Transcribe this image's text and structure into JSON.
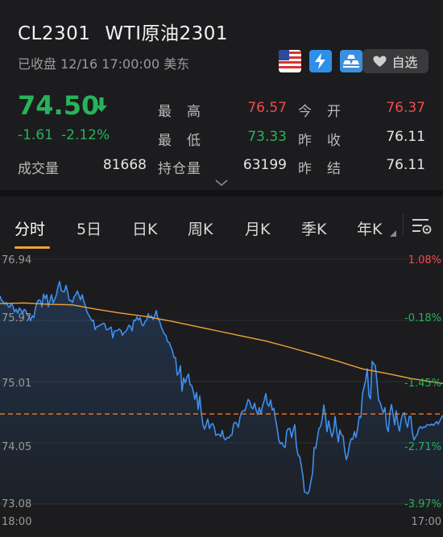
{
  "header": {
    "symbol": "CL2301",
    "name": "WTI原油2301",
    "status": "已收盘 12/16 17:00:00 美东",
    "fav_label": "自选",
    "price": "74.50",
    "change": "-1.61",
    "change_pct": "-2.12%",
    "volume_label": "成交量",
    "volume_value": "81668",
    "stats": {
      "high_label": "最　高",
      "high_value": "76.57",
      "open_label": "今　开",
      "open_value": "76.37",
      "low_label": "最　低",
      "low_value": "73.33",
      "prev_close_label": "昨　收",
      "prev_close_value": "76.11",
      "oi_label": "持仓量",
      "oi_value": "63199",
      "prev_settle_label": "昨　结",
      "prev_settle_value": "76.11"
    },
    "colors": {
      "up": "#f04b4b",
      "down": "#27b35a",
      "accent": "#f0a23a"
    },
    "icons": [
      "us-flag-icon",
      "lightning-icon",
      "gold-bars-icon",
      "heart-icon",
      "chevron-down-icon",
      "settings-icon"
    ]
  },
  "tabs": [
    {
      "label": "分时",
      "active": true
    },
    {
      "label": "5日"
    },
    {
      "label": "日K"
    },
    {
      "label": "周K"
    },
    {
      "label": "月K"
    },
    {
      "label": "季K"
    },
    {
      "label": "年K"
    }
  ],
  "chart_data": {
    "type": "line",
    "y_ticks": [
      "76.94",
      "75.97",
      "75.01",
      "74.05",
      "73.08"
    ],
    "pct_ticks": [
      "1.08%",
      "-0.18%",
      "-1.45%",
      "-2.71%",
      "-3.97%"
    ],
    "x_ticks": [
      "18:00",
      "17:00"
    ],
    "ylim": [
      73.08,
      76.94
    ],
    "reference_line": 74.5,
    "series": [
      {
        "color": "#3d8ff0",
        "x": [
          0,
          1,
          2,
          3,
          4,
          5,
          6,
          7,
          8,
          9,
          10,
          11,
          12,
          13,
          14,
          15,
          16,
          17,
          18,
          19,
          20,
          21,
          22,
          23,
          24,
          25,
          26,
          27,
          28,
          29,
          30,
          31,
          32,
          33,
          34,
          35,
          36,
          37,
          38,
          39,
          40,
          41,
          42,
          43,
          44,
          45,
          46,
          47,
          48,
          49,
          50,
          51,
          52,
          53,
          54,
          55,
          56,
          57,
          58,
          59,
          60,
          61,
          62,
          63,
          64,
          65,
          66,
          67,
          68,
          69,
          70,
          71,
          72,
          73,
          74,
          75,
          76,
          77,
          78,
          79,
          80,
          81,
          82,
          83,
          84,
          85,
          86,
          87,
          88,
          89,
          90,
          91,
          92,
          93,
          94,
          95,
          96,
          97,
          98,
          99,
          100,
          101,
          102,
          103,
          104,
          105,
          106,
          107,
          108,
          109,
          110,
          111,
          112,
          113,
          114,
          115,
          116,
          117,
          118,
          119,
          120,
          121,
          122,
          123,
          124,
          125,
          126,
          127,
          128,
          129,
          130,
          131,
          132,
          133,
          134,
          135,
          136,
          137,
          138,
          139,
          140,
          141,
          142,
          143,
          144,
          145,
          146,
          147,
          148,
          149,
          150,
          151,
          152,
          153,
          154,
          155,
          156,
          157,
          158,
          159,
          160,
          161,
          162,
          163,
          164,
          165,
          166,
          167,
          168,
          169,
          170,
          171,
          172,
          173,
          174,
          175,
          176,
          177,
          178,
          179,
          180,
          181,
          182,
          183,
          184,
          185,
          186,
          187,
          188,
          189,
          190,
          191,
          192,
          193,
          194,
          195,
          196,
          197,
          198,
          199,
          200,
          201,
          202,
          203,
          204,
          205,
          206,
          207,
          208,
          209,
          210,
          211,
          212,
          213,
          214,
          215,
          216,
          217,
          218,
          219,
          220,
          221,
          222,
          223,
          224,
          225,
          226,
          227,
          228,
          229,
          230,
          231,
          232,
          233,
          234,
          235,
          236,
          237,
          238,
          239,
          240,
          241,
          242,
          243,
          244,
          245,
          246,
          247,
          248,
          249,
          250,
          251,
          252,
          253,
          254,
          255,
          256,
          257,
          258,
          259,
          260,
          261,
          262,
          263,
          264,
          265,
          266,
          267,
          268,
          269,
          270,
          271,
          272,
          273,
          274,
          275
        ],
        "values": [
          76.36,
          76.29,
          76.27,
          76.23,
          76.26,
          76.2,
          76.18,
          76.24,
          76.2,
          76.11,
          76.15,
          76.09,
          76.17,
          76.14,
          76.08,
          76.15,
          76.13,
          76.06,
          76.05,
          75.97,
          76.05,
          76.02,
          76.17,
          76.26,
          76.3,
          76.29,
          76.19,
          76.39,
          76.32,
          76.38,
          76.19,
          76.29,
          76.38,
          76.25,
          76.31,
          76.38,
          76.51,
          76.59,
          76.45,
          76.43,
          76.43,
          76.53,
          76.42,
          76.29,
          76.29,
          76.26,
          76.35,
          76.38,
          76.44,
          76.37,
          76.3,
          76.38,
          76.28,
          76.2,
          76.11,
          76.06,
          76.02,
          75.97,
          75.98,
          75.83,
          75.88,
          75.88,
          75.9,
          75.91,
          75.93,
          75.92,
          75.83,
          75.83,
          75.85,
          75.87,
          75.7,
          75.81,
          75.81,
          75.82,
          75.84,
          75.82,
          75.74,
          75.78,
          75.8,
          75.84,
          75.9,
          75.88,
          75.81,
          75.98,
          75.97,
          76.03,
          75.98,
          76.02,
          75.91,
          75.89,
          75.96,
          75.98,
          76.08,
          76.02,
          76.05,
          75.99,
          76.05,
          76.13,
          76.0,
          75.97,
          75.88,
          75.82,
          75.76,
          75.74,
          75.64,
          75.63,
          75.56,
          75.5,
          75.39,
          75.39,
          75.11,
          75.15,
          75.26,
          74.86,
          75.07,
          74.99,
          75.08,
          75.13,
          74.96,
          74.95,
          74.85,
          74.73,
          74.84,
          74.57,
          74.78,
          74.51,
          74.33,
          74.26,
          74.34,
          74.42,
          74.27,
          74.33,
          74.35,
          74.29,
          74.16,
          74.18,
          74.18,
          74.14,
          74.24,
          74.12,
          74.09,
          74.13,
          74.12,
          74.16,
          74.17,
          74.34,
          74.37,
          74.35,
          74.29,
          74.45,
          74.53,
          74.55,
          74.55,
          74.63,
          74.73,
          74.7,
          74.61,
          74.58,
          74.67,
          74.56,
          74.49,
          74.6,
          74.5,
          74.63,
          74.71,
          74.82,
          74.66,
          74.62,
          74.72,
          74.56,
          74.59,
          74.42,
          74.28,
          74.1,
          74.03,
          74.05,
          73.99,
          73.97,
          74.23,
          74.27,
          74.27,
          74.13,
          74.24,
          74.33,
          73.99,
          73.85,
          73.83,
          73.69,
          73.53,
          73.27,
          73.26,
          73.24,
          73.29,
          73.44,
          73.56,
          73.97,
          73.96,
          74.12,
          74.27,
          74.3,
          74.42,
          74.64,
          74.47,
          74.22,
          74.39,
          74.26,
          74.14,
          74.22,
          74.46,
          74.24,
          74.06,
          74.25,
          74.17,
          74.15,
          73.92,
          73.78,
          73.86,
          74.02,
          74.11,
          74.1,
          74.22,
          74.13,
          74.27,
          74.46,
          74.44,
          74.81,
          74.93,
          75.03,
          75.21,
          74.79,
          74.74,
          75.33,
          75.29,
          75.26,
          75.01,
          74.72,
          74.68,
          74.59,
          74.52,
          74.6,
          74.3,
          74.22,
          74.52,
          74.65,
          74.5,
          74.33,
          74.55,
          74.34,
          74.23,
          74.4,
          74.5,
          74.52,
          74.37,
          74.29,
          74.46,
          74.46,
          74.2,
          74.09,
          74.14,
          74.18,
          74.27,
          74.3,
          74.27,
          74.3,
          74.29,
          74.33,
          74.33,
          74.32,
          74.34,
          74.32,
          74.35,
          74.38,
          74.34,
          74.39,
          74.44,
          74.48
        ]
      },
      {
        "color": "#f0a23a",
        "x": [
          0,
          15,
          30,
          45,
          60,
          75,
          90,
          105,
          120,
          135,
          150,
          165,
          180,
          195,
          210,
          225,
          240,
          255,
          275
        ],
        "values": [
          76.24,
          76.25,
          76.23,
          76.22,
          76.15,
          76.09,
          76.04,
          75.97,
          75.89,
          75.81,
          75.73,
          75.65,
          75.55,
          75.44,
          75.33,
          75.21,
          75.14,
          75.06,
          74.98
        ]
      }
    ]
  }
}
